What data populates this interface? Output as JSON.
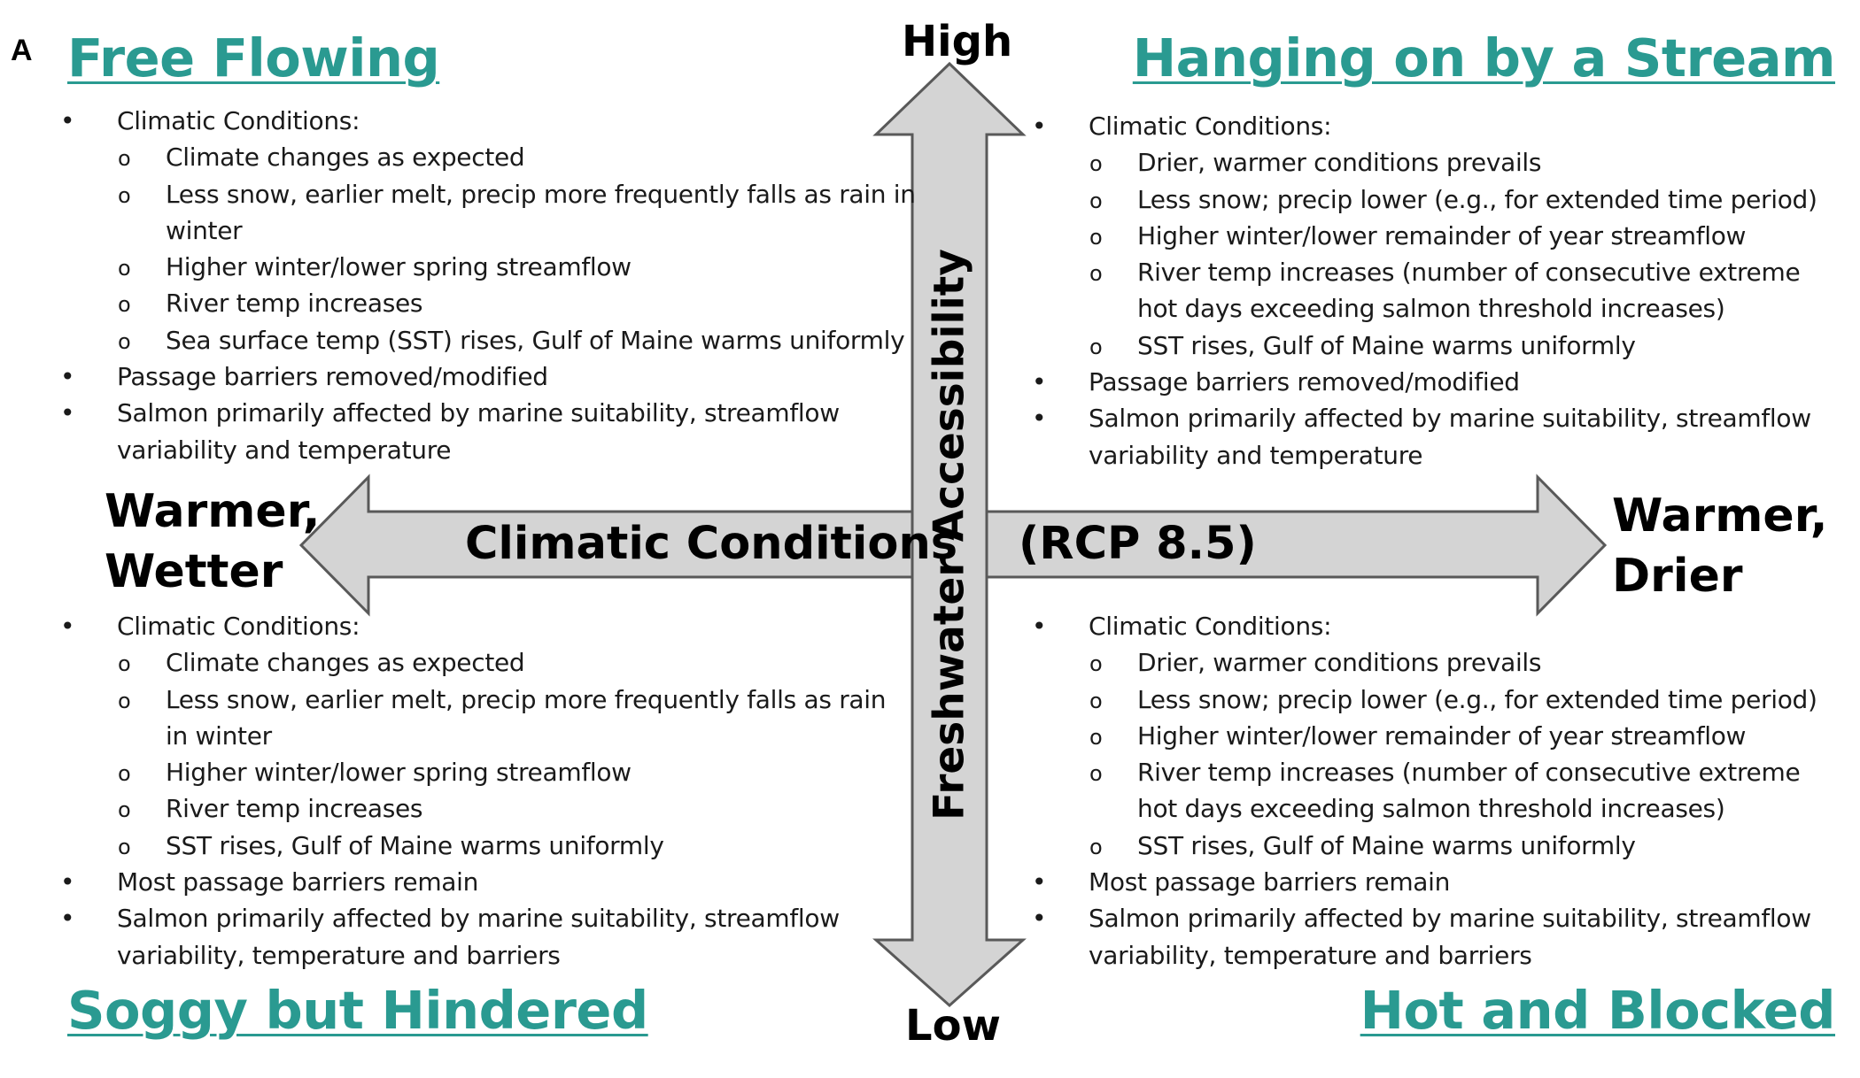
{
  "panel_letter": "A",
  "axes": {
    "vertical": {
      "label": "Freshwater Accessibility",
      "high": "High",
      "low": "Low"
    },
    "horizontal": {
      "label": "Climatic Conditions",
      "scenario": "(RCP 8.5)",
      "left": [
        "Warmer,",
        "Wetter"
      ],
      "right": [
        "Warmer,",
        "Drier"
      ]
    }
  },
  "colors": {
    "title_teal": "#2a9a91",
    "arrow_fill": "#d4d4d4",
    "arrow_stroke": "#595959"
  },
  "quadrants": {
    "top_left": {
      "title": "Free Flowing",
      "climatic_heading": "Climatic Conditions:",
      "climatic": [
        "Climate changes as expected",
        "Less snow, earlier melt, precip more frequently falls as rain in winter",
        "Higher winter/lower spring streamflow",
        "River temp increases",
        "Sea surface temp (SST) rises, Gulf of Maine warms uniformly"
      ],
      "barriers": "Passage barriers removed/modified",
      "salmon": "Salmon primarily affected by marine suitability, streamflow variability and temperature"
    },
    "top_right": {
      "title": "Hanging on by a Stream",
      "climatic_heading": "Climatic Conditions:",
      "climatic": [
        "Drier, warmer conditions prevails",
        "Less snow; precip lower (e.g., for extended time period)",
        "Higher winter/lower remainder of year streamflow",
        "River temp increases (number of consecutive extreme hot days exceeding salmon threshold increases)",
        "SST rises, Gulf of Maine warms uniformly"
      ],
      "barriers": "Passage barriers removed/modified",
      "salmon": "Salmon primarily affected by marine suitability, streamflow variability and temperature"
    },
    "bottom_left": {
      "title": "Soggy but Hindered",
      "climatic_heading": "Climatic Conditions:",
      "climatic": [
        "Climate changes as expected",
        "Less snow, earlier melt, precip more frequently falls as rain in winter",
        "Higher winter/lower spring streamflow",
        "River temp increases",
        "SST rises, Gulf of Maine warms uniformly"
      ],
      "barriers": "Most passage barriers remain",
      "salmon": "Salmon primarily affected by marine suitability, streamflow variability, temperature and barriers"
    },
    "bottom_right": {
      "title": "Hot and Blocked",
      "climatic_heading": "Climatic Conditions:",
      "climatic": [
        "Drier, warmer conditions prevails",
        "Less snow; precip lower (e.g., for extended time period)",
        "Higher winter/lower remainder of year streamflow",
        "River temp increases (number of consecutive extreme hot days exceeding salmon threshold increases)",
        "SST rises, Gulf of Maine warms uniformly"
      ],
      "barriers": "Most passage barriers remain",
      "salmon": "Salmon primarily affected by marine suitability, streamflow variability, temperature and barriers"
    }
  }
}
